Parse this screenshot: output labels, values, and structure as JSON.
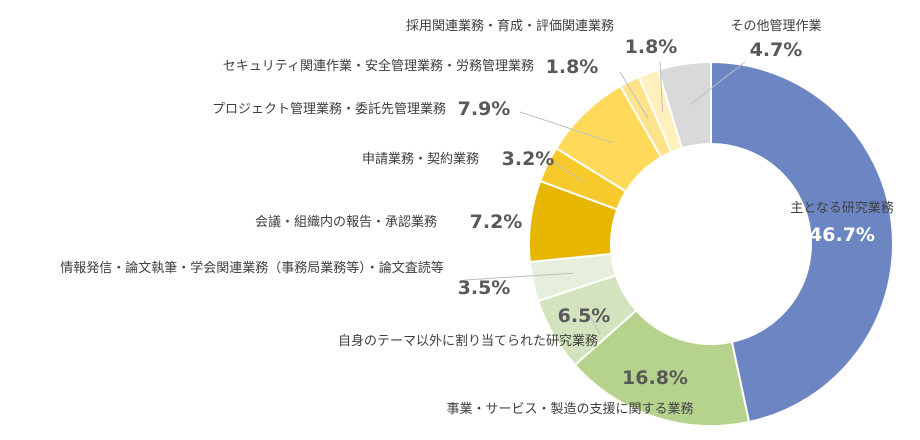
{
  "chart_data": {
    "type": "pie",
    "variant": "donut",
    "title": "",
    "categories": [
      "主となる研究業務",
      "事業・サービス・製造の支援に関する業務",
      "自身のテーマ以外に割り当てられた研究業務",
      "情報発信・論文執筆・学会関連業務（事務局業務等）・論文査読等",
      "会議・組織内の報告・承認業務",
      "申請業務・契約業務",
      "プロジェクト管理業務・委託先管理業務",
      "セキュリティ関連作業・安全管理業務・労務管理業務",
      "採用関連業務・育成・評価関連業務",
      "その他管理作業"
    ],
    "values": [
      46.7,
      16.8,
      6.5,
      3.5,
      7.2,
      3.2,
      7.9,
      1.8,
      1.8,
      4.7
    ],
    "value_labels": [
      "46.7%",
      "16.8%",
      "6.5%",
      "3.5%",
      "7.2%",
      "3.2%",
      "7.9%",
      "1.8%",
      "1.8%",
      "4.7%"
    ],
    "colors": [
      "#6C86C3",
      "#B6D38D",
      "#D3E3BE",
      "#E6EFDB",
      "#E6B600",
      "#F7C92A",
      "#FFD95A",
      "#FFE38A",
      "#FFF0BE",
      "#D9D9D9"
    ],
    "start_angle_deg": 0,
    "direction": "clockwise",
    "legend": "none",
    "data_labels": "outside with leader lines"
  }
}
